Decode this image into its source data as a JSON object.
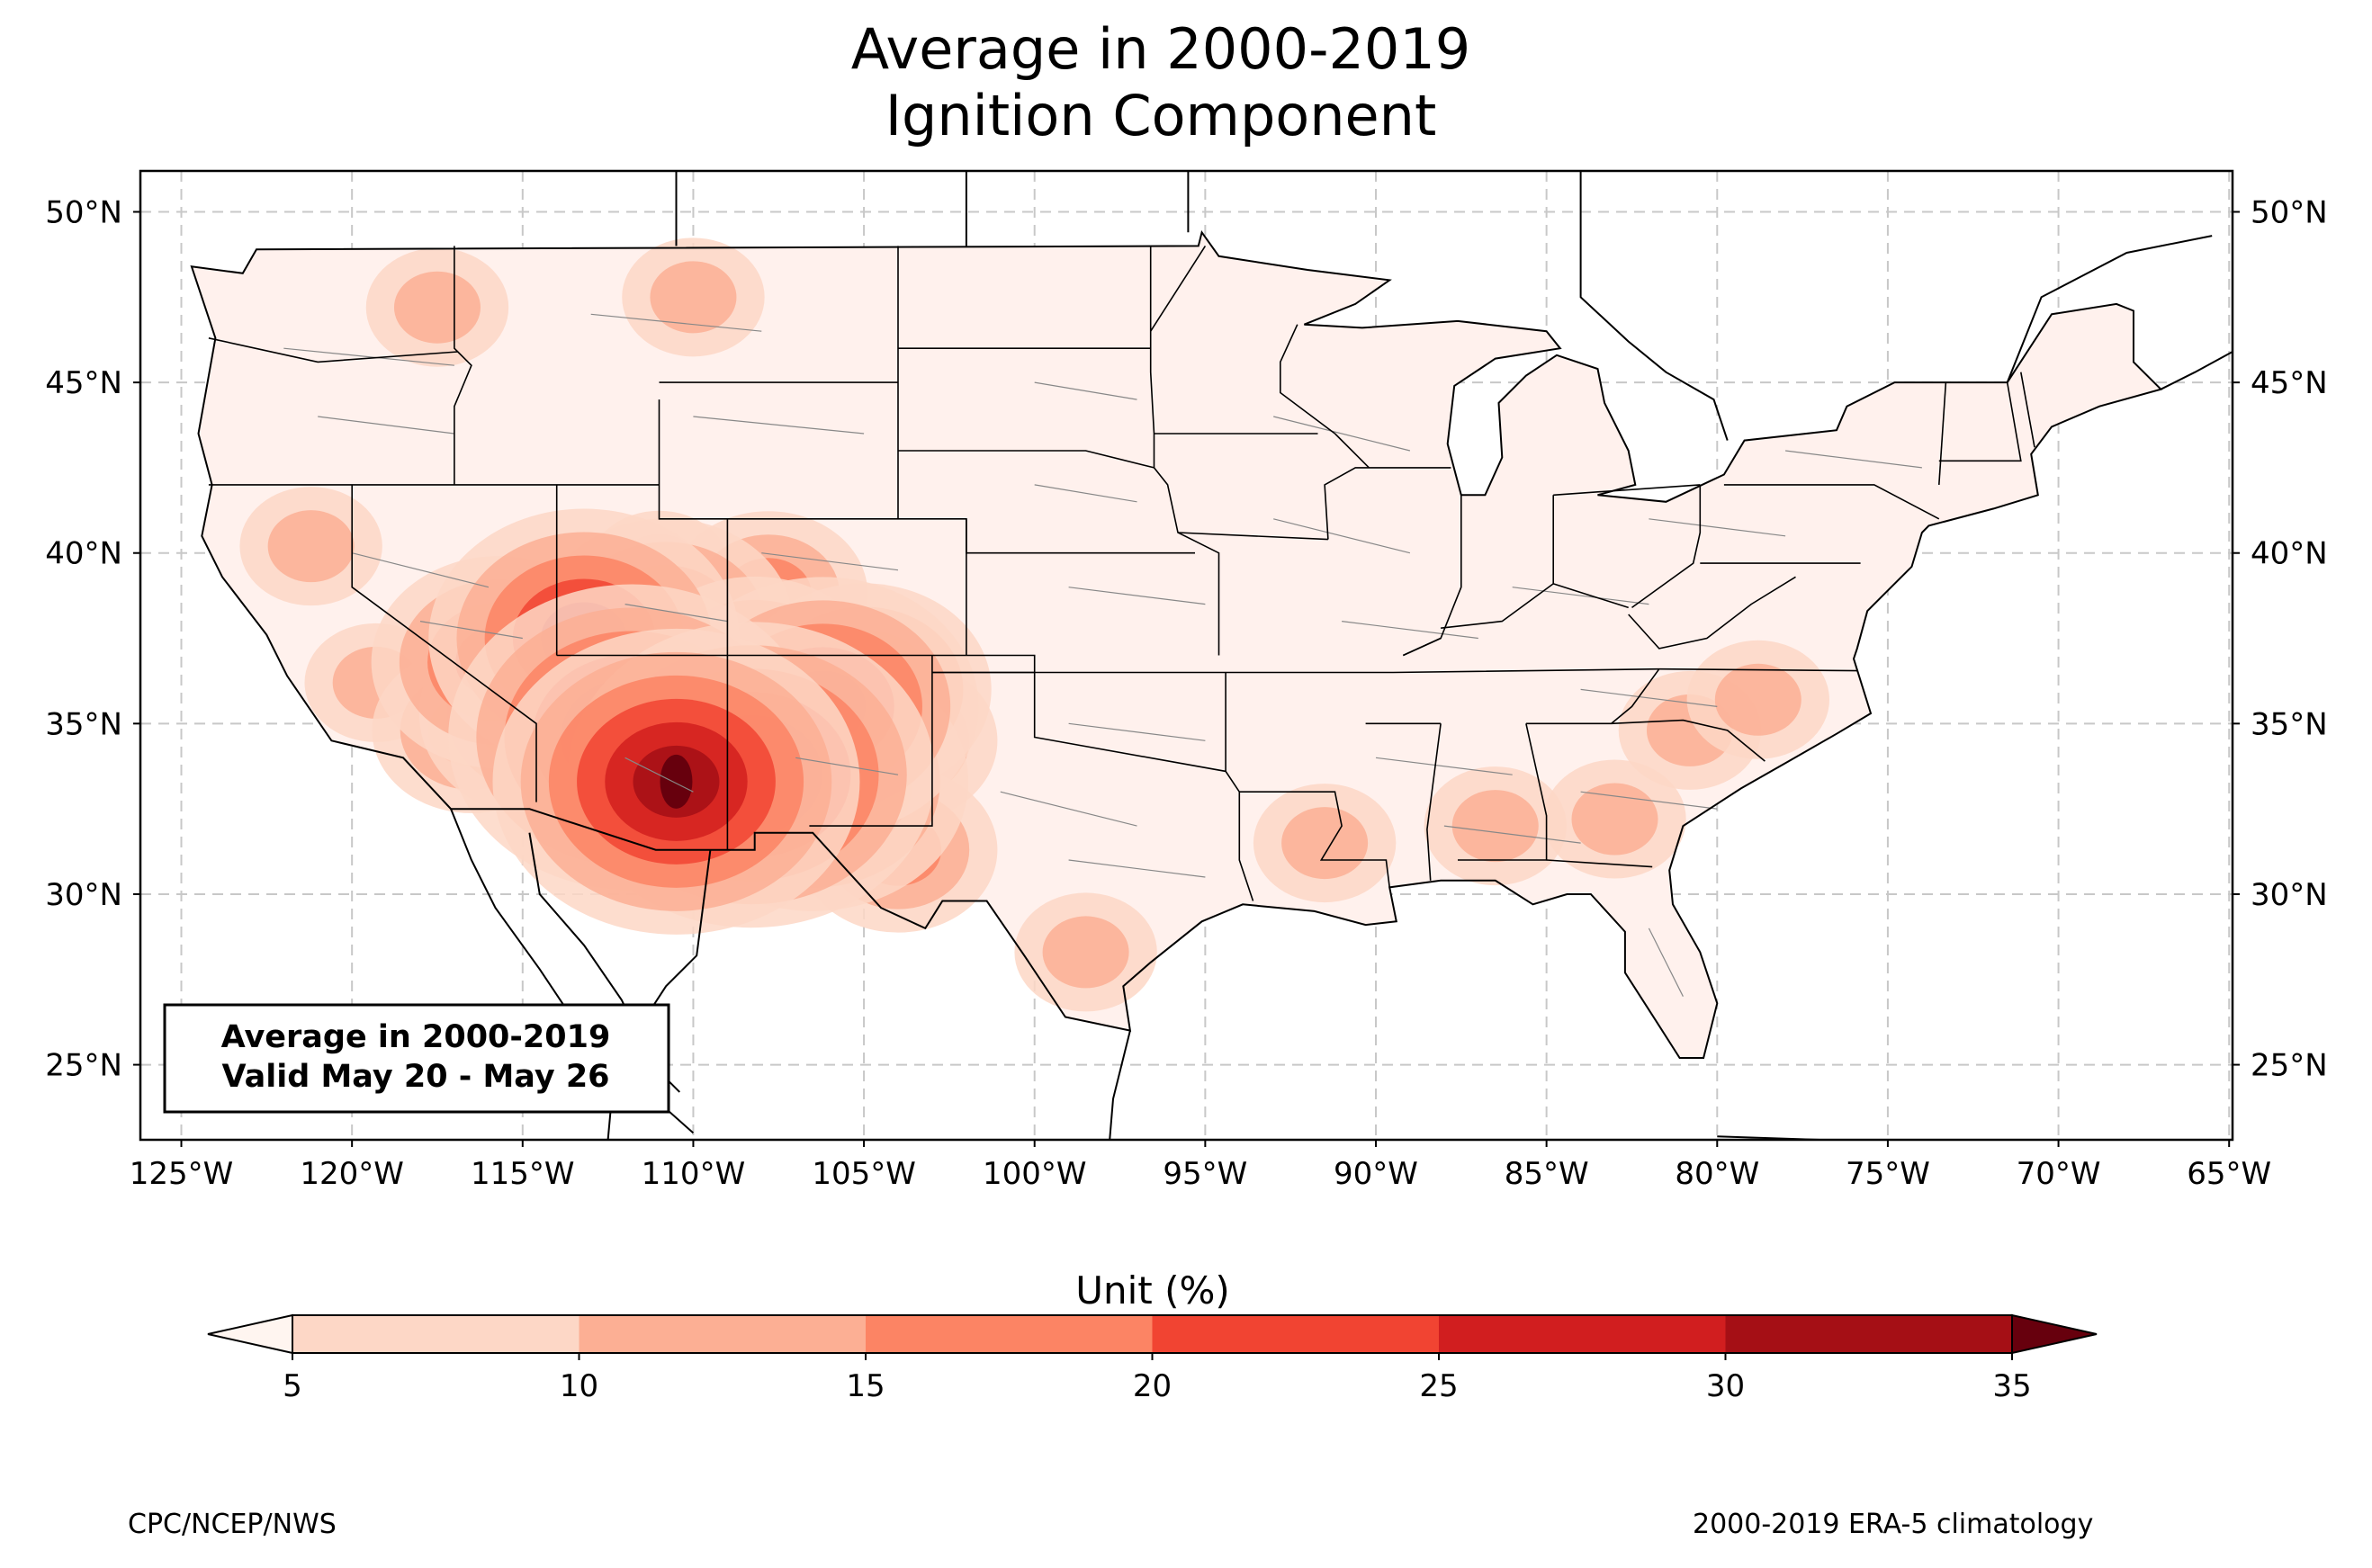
{
  "title": {
    "line1": "Average in 2000-2019",
    "line2": "Ignition Component"
  },
  "inset_box": {
    "line1": "Average in 2000-2019",
    "line2": "Valid May 20 - May 26"
  },
  "map": {
    "lon_range": [
      -126.2,
      -64.9
    ],
    "lat_range": [
      22.8,
      51.2
    ],
    "lat_ticks": [
      {
        "value": 50,
        "label": "50°N"
      },
      {
        "value": 45,
        "label": "45°N"
      },
      {
        "value": 40,
        "label": "40°N"
      },
      {
        "value": 35,
        "label": "35°N"
      },
      {
        "value": 30,
        "label": "30°N"
      },
      {
        "value": 25,
        "label": "25°N"
      }
    ],
    "lon_ticks": [
      {
        "value": -125,
        "label": "125°W"
      },
      {
        "value": -120,
        "label": "120°W"
      },
      {
        "value": -115,
        "label": "115°W"
      },
      {
        "value": -110,
        "label": "110°W"
      },
      {
        "value": -105,
        "label": "105°W"
      },
      {
        "value": -100,
        "label": "100°W"
      },
      {
        "value": -95,
        "label": "95°W"
      },
      {
        "value": -90,
        "label": "90°W"
      },
      {
        "value": -85,
        "label": "85°W"
      },
      {
        "value": -80,
        "label": "80°W"
      },
      {
        "value": -75,
        "label": "75°W"
      },
      {
        "value": -70,
        "label": "70°W"
      },
      {
        "value": -65,
        "label": "65°W"
      }
    ],
    "gridlines": true,
    "land_fill_color": "#fff1ed",
    "hotspots": [
      {
        "lon": -110.5,
        "lat": 33.3,
        "value": 35
      },
      {
        "lon": -111.8,
        "lat": 34.6,
        "value": 30
      },
      {
        "lon": -108.3,
        "lat": 33.5,
        "value": 30
      },
      {
        "lon": -106.5,
        "lat": 33.3,
        "value": 25
      },
      {
        "lon": -106.2,
        "lat": 35.5,
        "value": 25
      },
      {
        "lon": -113.2,
        "lat": 37.5,
        "value": 25
      },
      {
        "lon": -110.8,
        "lat": 37.9,
        "value": 20
      },
      {
        "lon": -114.3,
        "lat": 35.3,
        "value": 20
      },
      {
        "lon": -115.7,
        "lat": 36.8,
        "value": 20
      },
      {
        "lon": -108.2,
        "lat": 36.2,
        "value": 20
      },
      {
        "lon": -105.0,
        "lat": 36.0,
        "value": 20
      },
      {
        "lon": -104.0,
        "lat": 34.5,
        "value": 15
      },
      {
        "lon": -107.8,
        "lat": 38.8,
        "value": 15
      },
      {
        "lon": -104.0,
        "lat": 31.3,
        "value": 15
      },
      {
        "lon": -116.5,
        "lat": 34.8,
        "value": 15
      },
      {
        "lon": -119.3,
        "lat": 36.2,
        "value": 10
      },
      {
        "lon": -121.2,
        "lat": 40.2,
        "value": 10
      },
      {
        "lon": -111.0,
        "lat": 39.5,
        "value": 10
      },
      {
        "lon": -91.5,
        "lat": 31.5,
        "value": 10
      },
      {
        "lon": -86.5,
        "lat": 32.0,
        "value": 10
      },
      {
        "lon": -83.0,
        "lat": 32.2,
        "value": 10
      },
      {
        "lon": -80.8,
        "lat": 34.8,
        "value": 10
      },
      {
        "lon": -78.8,
        "lat": 35.7,
        "value": 10
      },
      {
        "lon": -98.5,
        "lat": 28.3,
        "value": 10
      },
      {
        "lon": -117.5,
        "lat": 47.2,
        "value": 10
      },
      {
        "lon": -110.0,
        "lat": 47.5,
        "value": 10
      }
    ]
  },
  "colorbar": {
    "label": "Unit (%)",
    "ticks": [
      "5",
      "10",
      "15",
      "20",
      "25",
      "30",
      "35"
    ],
    "levels": [
      5,
      10,
      15,
      20,
      25,
      30,
      35
    ],
    "under_color": "#fff5f0",
    "colors": [
      "#fdd7c6",
      "#fcaf94",
      "#fc8464",
      "#f14432",
      "#d11e1f",
      "#a50f15"
    ],
    "over_color": "#67000d",
    "extend": "both"
  },
  "footer": {
    "left": "CPC/NCEP/NWS",
    "right": "2000-2019 ERA-5 climatology"
  }
}
